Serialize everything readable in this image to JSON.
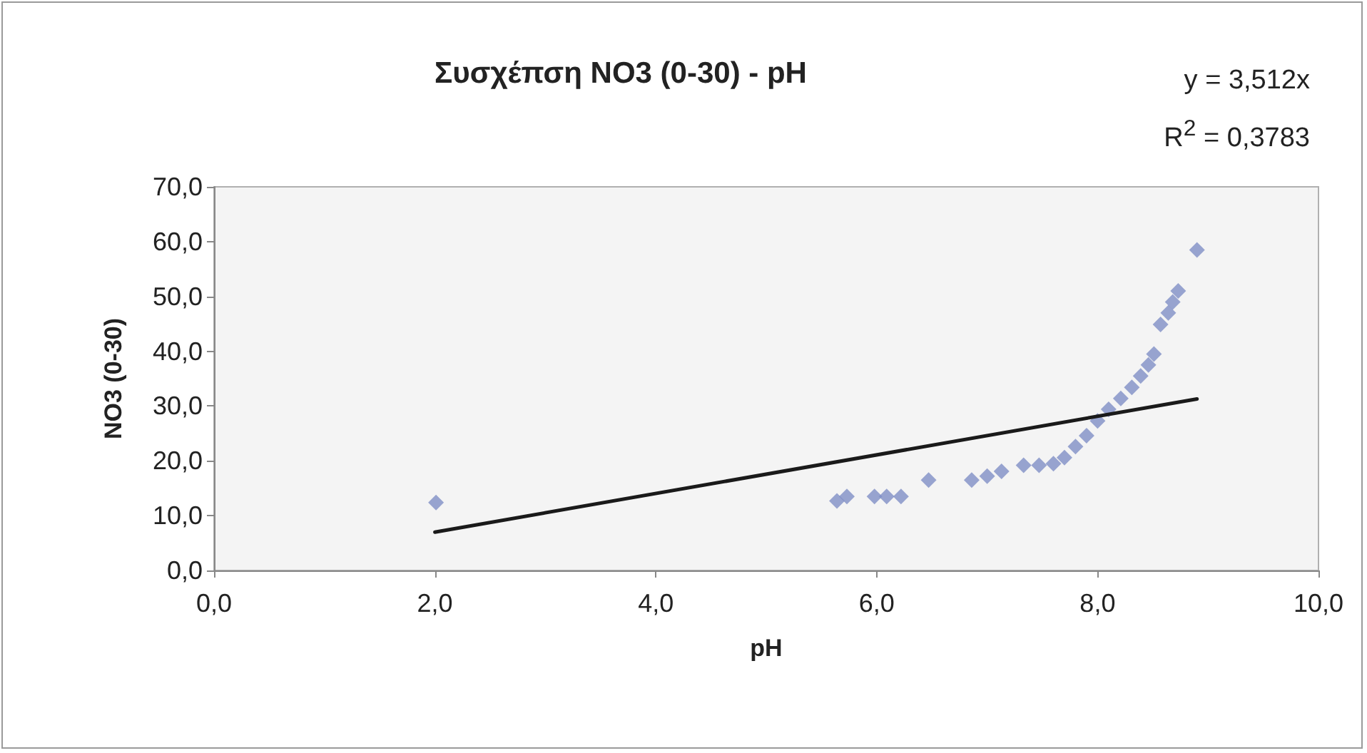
{
  "chart_data": {
    "type": "scatter",
    "title": "Συσχέπση NO3 (0-30) - pH",
    "xlabel": "pH",
    "ylabel": "NO3 (0-30)",
    "annotations": [
      "y = 3,512x",
      "R$^{2}$ = 0,3783"
    ],
    "marker": "diamond",
    "grid": false,
    "xlim": [
      0,
      10
    ],
    "xticks": [
      {
        "value": 0,
        "label": "0,0"
      },
      {
        "value": 2,
        "label": "2,0"
      },
      {
        "value": 4,
        "label": "4,0"
      },
      {
        "value": 6,
        "label": "6,0"
      },
      {
        "value": 8,
        "label": "8,0"
      },
      {
        "value": 10,
        "label": "10,0"
      }
    ],
    "ylim": [
      0,
      70
    ],
    "yticks": [
      {
        "value": 0,
        "label": "0,0"
      },
      {
        "value": 10,
        "label": "10,0"
      },
      {
        "value": 20,
        "label": "20,0"
      },
      {
        "value": 30,
        "label": "30,0"
      },
      {
        "value": 40,
        "label": "40,0"
      },
      {
        "value": 50,
        "label": "50,0"
      },
      {
        "value": 60,
        "label": "60,0"
      },
      {
        "value": 70,
        "label": "70,0"
      }
    ],
    "series": [
      {
        "color": "#7f8fc6",
        "x": [
          2.01,
          5.64,
          5.73,
          5.98,
          6.09,
          6.22,
          6.47,
          6.86,
          7.0,
          7.13,
          7.33,
          7.47,
          7.6,
          7.7,
          7.8,
          7.9,
          8.0,
          8.1,
          8.21,
          8.31,
          8.39,
          8.46,
          8.51,
          8.57,
          8.64,
          8.68,
          8.73,
          8.9
        ],
        "values": [
          12.4,
          12.7,
          13.5,
          13.5,
          13.5,
          13.5,
          16.5,
          16.5,
          17.2,
          18.1,
          19.2,
          19.2,
          19.5,
          20.6,
          22.6,
          24.6,
          27.3,
          29.4,
          31.4,
          33.4,
          35.5,
          37.5,
          39.5,
          44.9,
          47.0,
          49.0,
          51.0,
          58.5
        ]
      },
      {
        "type": "line",
        "color": "#1a1a1a",
        "marker": "none",
        "line_style": "solid",
        "x": [
          2.0,
          8.9
        ],
        "values": [
          7.0,
          31.3
        ]
      }
    ]
  }
}
